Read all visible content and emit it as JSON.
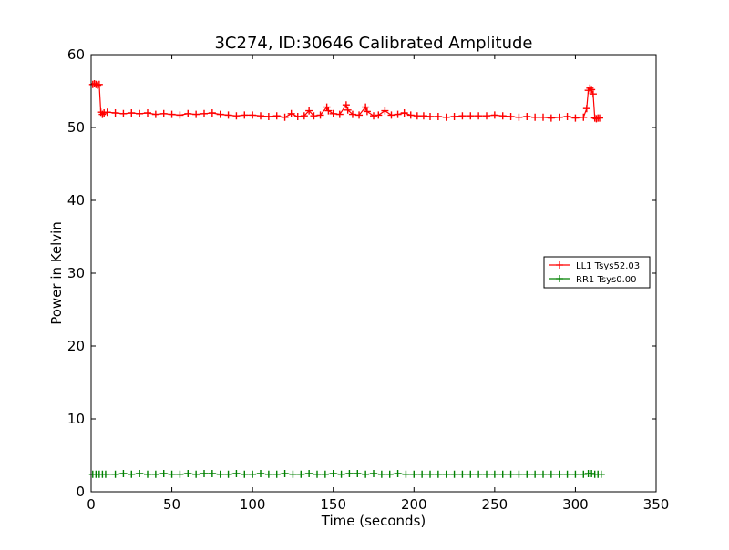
{
  "chart_data": {
    "type": "line",
    "title": "3C274, ID:30646 Calibrated Amplitude",
    "xlabel": "Time (seconds)",
    "ylabel": "Power in Kelvin",
    "xlim": [
      0,
      350
    ],
    "ylim": [
      0,
      60
    ],
    "xticks": [
      0,
      50,
      100,
      150,
      200,
      250,
      300,
      350
    ],
    "yticks": [
      0,
      10,
      20,
      30,
      40,
      50,
      60
    ],
    "grid": false,
    "legend_position": "center-right",
    "marker": "+",
    "series": [
      {
        "name": "LL1 Tsys52.03",
        "color": "#ff0000",
        "x": [
          1,
          2,
          3,
          4,
          5,
          6,
          7,
          8,
          10,
          15,
          20,
          25,
          30,
          35,
          40,
          45,
          50,
          55,
          60,
          65,
          70,
          75,
          80,
          85,
          90,
          95,
          100,
          105,
          110,
          115,
          120,
          124,
          128,
          132,
          135,
          138,
          142,
          146,
          147,
          150,
          154,
          158,
          159,
          162,
          166,
          170,
          171,
          175,
          178,
          182,
          186,
          190,
          194,
          198,
          202,
          206,
          210,
          215,
          220,
          225,
          230,
          235,
          240,
          245,
          250,
          255,
          260,
          265,
          270,
          275,
          280,
          285,
          290,
          295,
          300,
          305,
          307,
          308,
          309,
          310,
          311,
          312,
          313,
          314,
          315
        ],
        "y": [
          55.9,
          56.0,
          55.9,
          55.8,
          55.9,
          52.1,
          51.8,
          52.0,
          52.1,
          52.0,
          51.9,
          52.0,
          51.9,
          52.0,
          51.8,
          51.9,
          51.8,
          51.7,
          51.9,
          51.8,
          51.9,
          52.0,
          51.8,
          51.7,
          51.6,
          51.7,
          51.7,
          51.6,
          51.5,
          51.6,
          51.4,
          51.9,
          51.5,
          51.6,
          52.3,
          51.6,
          51.7,
          52.8,
          52.3,
          51.9,
          51.8,
          53.1,
          52.4,
          51.8,
          51.7,
          52.8,
          52.2,
          51.6,
          51.7,
          52.3,
          51.7,
          51.8,
          52.0,
          51.7,
          51.6,
          51.6,
          51.5,
          51.5,
          51.4,
          51.5,
          51.6,
          51.6,
          51.6,
          51.6,
          51.7,
          51.6,
          51.5,
          51.4,
          51.5,
          51.4,
          51.4,
          51.3,
          51.4,
          51.5,
          51.3,
          51.4,
          52.6,
          55.1,
          55.4,
          55.2,
          54.6,
          51.3,
          51.2,
          51.3,
          51.3
        ]
      },
      {
        "name": "RR1 Tsys0.00",
        "color": "#008000",
        "x": [
          1,
          3,
          5,
          7,
          9,
          15,
          20,
          25,
          30,
          35,
          40,
          45,
          50,
          55,
          60,
          65,
          70,
          75,
          80,
          85,
          90,
          95,
          100,
          105,
          110,
          115,
          120,
          125,
          130,
          135,
          140,
          145,
          150,
          155,
          160,
          165,
          170,
          175,
          180,
          185,
          190,
          195,
          200,
          205,
          210,
          215,
          220,
          225,
          230,
          235,
          240,
          245,
          250,
          255,
          260,
          265,
          270,
          275,
          280,
          285,
          290,
          295,
          300,
          305,
          308,
          310,
          312,
          314,
          316
        ],
        "y": [
          2.4,
          2.4,
          2.4,
          2.4,
          2.4,
          2.4,
          2.5,
          2.4,
          2.5,
          2.4,
          2.4,
          2.5,
          2.4,
          2.4,
          2.5,
          2.4,
          2.5,
          2.5,
          2.4,
          2.4,
          2.5,
          2.4,
          2.4,
          2.5,
          2.4,
          2.4,
          2.5,
          2.4,
          2.4,
          2.5,
          2.4,
          2.4,
          2.5,
          2.4,
          2.5,
          2.5,
          2.4,
          2.5,
          2.4,
          2.4,
          2.5,
          2.4,
          2.4,
          2.4,
          2.4,
          2.4,
          2.4,
          2.4,
          2.4,
          2.4,
          2.4,
          2.4,
          2.4,
          2.4,
          2.4,
          2.4,
          2.4,
          2.4,
          2.4,
          2.4,
          2.4,
          2.4,
          2.4,
          2.4,
          2.5,
          2.5,
          2.4,
          2.4,
          2.4
        ]
      }
    ]
  }
}
